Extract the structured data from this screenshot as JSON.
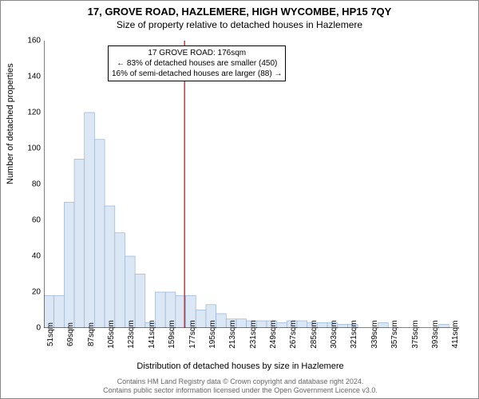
{
  "title": "17, GROVE ROAD, HAZLEMERE, HIGH WYCOMBE, HP15 7QY",
  "subtitle": "Size of property relative to detached houses in Hazlemere",
  "y_axis_label": "Number of detached properties",
  "x_axis_label": "Distribution of detached houses by size in Hazlemere",
  "chart": {
    "type": "histogram",
    "ylim": [
      0,
      160
    ],
    "ytick_step": 20,
    "yticks": [
      0,
      20,
      40,
      60,
      80,
      100,
      120,
      140,
      160
    ],
    "xticks": [
      "51sqm",
      "69sqm",
      "87sqm",
      "105sqm",
      "123sqm",
      "141sqm",
      "159sqm",
      "177sqm",
      "195sqm",
      "213sqm",
      "231sqm",
      "249sqm",
      "267sqm",
      "285sqm",
      "303sqm",
      "321sqm",
      "339sqm",
      "357sqm",
      "375sqm",
      "393sqm",
      "411sqm"
    ],
    "bar_color": "#dbe7f5",
    "bar_border": "#98b4d4",
    "background_color": "#ffffff",
    "axis_color": "#000000",
    "reference_line_color": "#cc0000",
    "reference_line_x_index": 7,
    "bins": [
      {
        "i": 0,
        "v": 18
      },
      {
        "i": 1,
        "v": 18
      },
      {
        "i": 2,
        "v": 70
      },
      {
        "i": 3,
        "v": 94
      },
      {
        "i": 4,
        "v": 120
      },
      {
        "i": 5,
        "v": 105
      },
      {
        "i": 6,
        "v": 68
      },
      {
        "i": 7,
        "v": 53
      },
      {
        "i": 8,
        "v": 40
      },
      {
        "i": 9,
        "v": 30
      },
      {
        "i": 10,
        "v": 3
      },
      {
        "i": 11,
        "v": 20
      },
      {
        "i": 12,
        "v": 20
      },
      {
        "i": 13,
        "v": 18
      },
      {
        "i": 14,
        "v": 18
      },
      {
        "i": 15,
        "v": 10
      },
      {
        "i": 16,
        "v": 13
      },
      {
        "i": 17,
        "v": 8
      },
      {
        "i": 18,
        "v": 5
      },
      {
        "i": 19,
        "v": 5
      },
      {
        "i": 20,
        "v": 4
      },
      {
        "i": 21,
        "v": 4
      },
      {
        "i": 22,
        "v": 4
      },
      {
        "i": 23,
        "v": 3
      },
      {
        "i": 24,
        "v": 4
      },
      {
        "i": 25,
        "v": 4
      },
      {
        "i": 26,
        "v": 3
      },
      {
        "i": 27,
        "v": 3
      },
      {
        "i": 28,
        "v": 3
      },
      {
        "i": 29,
        "v": 2
      },
      {
        "i": 30,
        "v": 2
      },
      {
        "i": 31,
        "v": 0
      },
      {
        "i": 32,
        "v": 0
      },
      {
        "i": 33,
        "v": 3
      },
      {
        "i": 34,
        "v": 0
      },
      {
        "i": 35,
        "v": 0
      },
      {
        "i": 36,
        "v": 0
      },
      {
        "i": 37,
        "v": 0
      },
      {
        "i": 38,
        "v": 0
      },
      {
        "i": 39,
        "v": 2
      },
      {
        "i": 40,
        "v": 0
      }
    ],
    "n_bins": 41
  },
  "annotation": {
    "line1": "17 GROVE ROAD: 176sqm",
    "line2": "← 83% of detached houses are smaller (450)",
    "line3": "16% of semi-detached houses are larger (88) →"
  },
  "footer": {
    "line1": "Contains HM Land Registry data © Crown copyright and database right 2024.",
    "line2": "Contains public sector information licensed under the Open Government Licence v3.0."
  }
}
